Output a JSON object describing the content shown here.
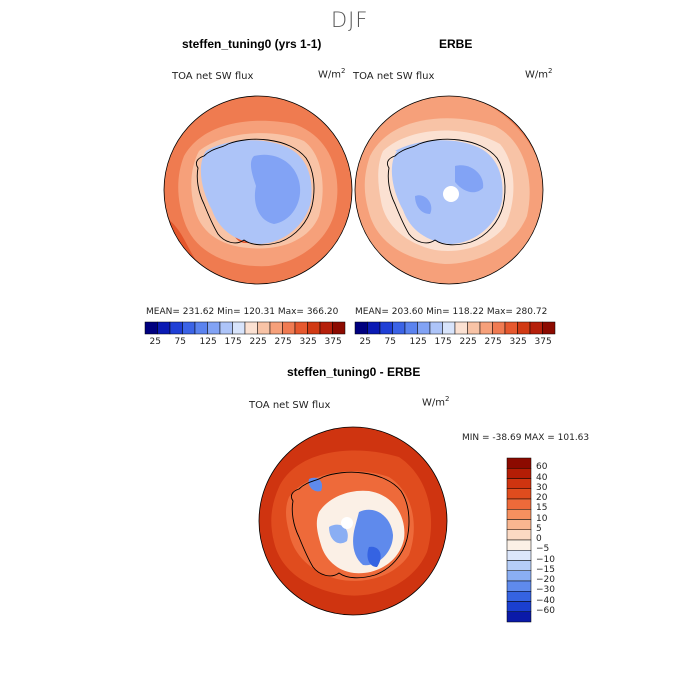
{
  "page": {
    "season_title": "DJF"
  },
  "panels": {
    "model": {
      "title": "steffen_tuning0 (yrs 1-1)",
      "variable": "TOA net SW flux",
      "units_base": "W/m",
      "units_exp": "2",
      "stats": "MEAN= 231.62   Min= 120.31   Max= 366.20"
    },
    "obs": {
      "title": "ERBE",
      "variable": "TOA net SW flux",
      "units_base": "W/m",
      "units_exp": "2",
      "stats": "MEAN= 203.60   Min= 118.22   Max= 280.72"
    },
    "diff": {
      "title": "steffen_tuning0 - ERBE",
      "variable": "TOA net SW flux",
      "units_base": "W/m",
      "units_exp": "2",
      "minmax": "MIN = -38.69  MAX = 101.63"
    }
  },
  "chart_data": [
    {
      "type": "heatmap",
      "title": "steffen_tuning0 (yrs 1-1)",
      "subtitle": "TOA net SW flux",
      "units": "W/m2",
      "projection": "south polar stereographic",
      "stats": {
        "mean": 231.62,
        "min": 120.31,
        "max": 366.2
      },
      "colorbar": {
        "orientation": "horizontal",
        "tick_labels": [
          "25",
          "75",
          "125",
          "175",
          "225",
          "275",
          "325",
          "375"
        ],
        "colors": [
          "#00007f",
          "#0a1ab4",
          "#1f3fd6",
          "#3b63e6",
          "#5b83ef",
          "#82a3f5",
          "#adc4f8",
          "#d8e4fb",
          "#fbe1d2",
          "#f8c3a6",
          "#f6a07a",
          "#f07b52",
          "#e6582e",
          "#d13a14",
          "#b51f0a",
          "#8c0a00"
        ]
      }
    },
    {
      "type": "heatmap",
      "title": "ERBE",
      "subtitle": "TOA net SW flux",
      "units": "W/m2",
      "projection": "south polar stereographic",
      "stats": {
        "mean": 203.6,
        "min": 118.22,
        "max": 280.72
      },
      "colorbar": {
        "orientation": "horizontal",
        "tick_labels": [
          "25",
          "75",
          "125",
          "175",
          "225",
          "275",
          "325",
          "375"
        ],
        "colors": [
          "#00007f",
          "#0a1ab4",
          "#1f3fd6",
          "#3b63e6",
          "#5b83ef",
          "#82a3f5",
          "#adc4f8",
          "#d8e4fb",
          "#fbe1d2",
          "#f8c3a6",
          "#f6a07a",
          "#f07b52",
          "#e6582e",
          "#d13a14",
          "#b51f0a",
          "#8c0a00"
        ]
      }
    },
    {
      "type": "heatmap",
      "title": "steffen_tuning0 - ERBE",
      "subtitle": "TOA net SW flux",
      "units": "W/m2",
      "projection": "south polar stereographic",
      "stats": {
        "min": -38.69,
        "max": 101.63
      },
      "colorbar": {
        "orientation": "vertical",
        "levels_top_to_bottom": [
          "60",
          "40",
          "30",
          "20",
          "15",
          "10",
          "5",
          "0",
          "-5",
          "-10",
          "-15",
          "-20",
          "-30",
          "-40",
          "-60"
        ],
        "colors_top_to_bottom": [
          "#8c0a00",
          "#b41d05",
          "#cf3410",
          "#e04c1e",
          "#ee6a3a",
          "#f6905f",
          "#f9b690",
          "#fbd9c3",
          "#fbf0e6",
          "#dbe6fb",
          "#b5cdf8",
          "#8aaef3",
          "#5f8aec",
          "#3563e2",
          "#1a3fd0",
          "#0a1aa8"
        ]
      }
    }
  ]
}
